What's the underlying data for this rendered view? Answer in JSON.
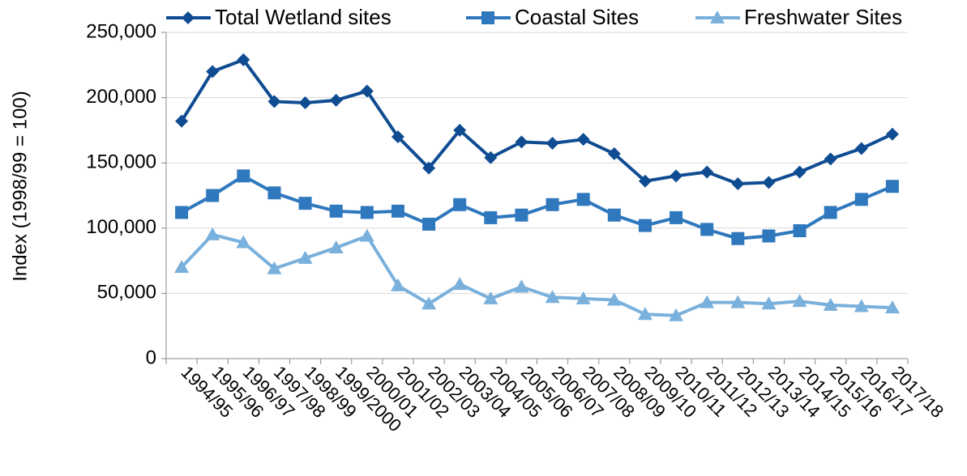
{
  "chart_data": {
    "type": "line",
    "y_label": "Index (1998/99 = 100)",
    "categories": [
      "1994/95",
      "1995/96",
      "1996/97",
      "1997/98",
      "1998/99",
      "1999/2000",
      "2000/01",
      "2001/02",
      "2002/03",
      "2003/04",
      "2004/05",
      "2005/06",
      "2006/07",
      "2007/08",
      "2008/09",
      "2009/10",
      "2010/11",
      "2011/12",
      "2012/13",
      "2013/14",
      "2014/15",
      "2015/16",
      "2016/17",
      "2017/18"
    ],
    "series": [
      {
        "name": "Total Wetland sites",
        "color": "#0f4c92",
        "marker": "diamond",
        "values": [
          182000,
          220000,
          229000,
          197000,
          196000,
          198000,
          205000,
          170000,
          146000,
          175000,
          154000,
          166000,
          165000,
          168000,
          157000,
          136000,
          140000,
          143000,
          134000,
          135000,
          143000,
          153000,
          161000,
          172000
        ]
      },
      {
        "name": "Coastal Sites",
        "color": "#2f78bd",
        "marker": "square",
        "values": [
          112000,
          125000,
          140000,
          127000,
          119000,
          113000,
          112000,
          113000,
          103000,
          118000,
          108000,
          110000,
          118000,
          122000,
          110000,
          102000,
          108000,
          99000,
          92000,
          94000,
          98000,
          112000,
          122000,
          132000
        ]
      },
      {
        "name": "Freshwater Sites",
        "color": "#79b0dc",
        "marker": "triangle",
        "values": [
          70000,
          95000,
          89000,
          69000,
          77000,
          85000,
          94000,
          56000,
          42000,
          57000,
          46000,
          55000,
          47000,
          46000,
          45000,
          34000,
          33000,
          43000,
          43000,
          42000,
          44000,
          41000,
          40000,
          39000
        ]
      }
    ],
    "ylim": [
      0,
      250000
    ],
    "yticks": [
      0,
      {
        "value": 50000,
        "label": "50,000"
      },
      {
        "value": 100000,
        "label": "100,000"
      },
      {
        "value": 150000,
        "label": "150,000"
      },
      {
        "value": 200000,
        "label": "200,000"
      },
      {
        "value": 250000,
        "label": "250,000"
      }
    ],
    "grid": true,
    "legend": "top"
  }
}
